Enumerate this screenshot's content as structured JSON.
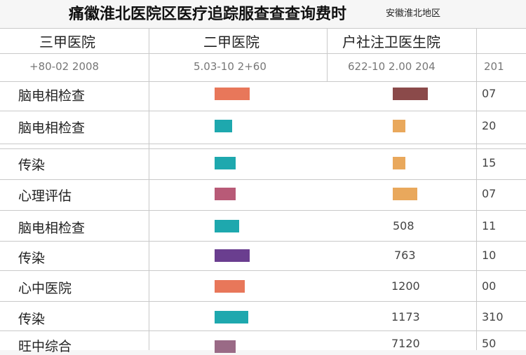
{
  "header": {
    "title": "痛徽淮北医院区医疗追踪服查查查询费时",
    "region": "安徽淮北地区"
  },
  "table": {
    "columns": [
      "三甲医院",
      "二甲医院",
      "户社注卫医生院",
      ""
    ],
    "subheaders": [
      "+80-02 2008",
      "5.03-10 2+60",
      "622-10 2.00 204",
      "201"
    ]
  },
  "chart_data": {
    "type": "table",
    "scale_max": 10,
    "categories": [
      "脑电相检查",
      "脑电相检查",
      "传染",
      "心理评估",
      "脑电相检查",
      "传染",
      "心中医院",
      "传染",
      "旺中综合"
    ],
    "rows": [
      {
        "category": "脑电相检查",
        "bar_a": 10,
        "color_a": "#e8775a",
        "bar_b": 10,
        "color_b": "#8b4a4a",
        "col3_text": "",
        "col4_text": "07"
      },
      {
        "category": "脑电相检查",
        "bar_a": 5,
        "color_a": "#1ea8ae",
        "bar_b": 3.5,
        "color_b": "#e9a85c",
        "col3_text": "",
        "col4_text": "20"
      },
      {
        "category": "传染",
        "bar_a": 6,
        "color_a": "#1ea8ae",
        "bar_b": 3.5,
        "color_b": "#e9a85c",
        "col3_text": "",
        "col4_text": "15"
      },
      {
        "category": "心理评估",
        "bar_a": 6,
        "color_a": "#b85a77",
        "bar_b": 7,
        "color_b": "#e9a85c",
        "col3_text": "",
        "col4_text": "07"
      },
      {
        "category": "脑电相检查",
        "bar_a": 7,
        "color_a": "#1ea8ae",
        "bar_b": 0,
        "color_b": "",
        "col3_text": "508",
        "col4_text": "11"
      },
      {
        "category": "传染",
        "bar_a": 10,
        "color_a": "#6a3e8f",
        "bar_b": 0,
        "color_b": "",
        "col3_text": "763",
        "col4_text": "10"
      },
      {
        "category": "心中医院",
        "bar_a": 8.5,
        "color_a": "#e8775a",
        "bar_b": 0,
        "color_b": "",
        "col3_text": "1200",
        "col4_text": "00"
      },
      {
        "category": "传染",
        "bar_a": 9.5,
        "color_a": "#1ea8ae",
        "bar_b": 0,
        "color_b": "",
        "col3_text": "1173",
        "col4_text": "310"
      },
      {
        "category": "旺中综合",
        "bar_a": 6,
        "color_a": "#9a6a86",
        "bar_b": 0,
        "color_b": "",
        "col3_text": "7120",
        "col4_text": "50"
      }
    ]
  }
}
